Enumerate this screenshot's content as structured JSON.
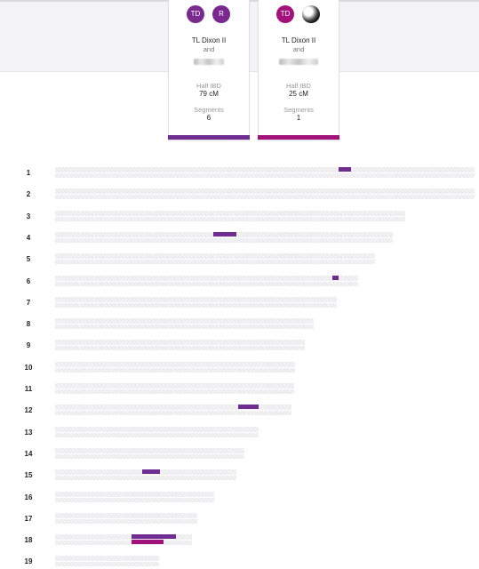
{
  "colors": {
    "purple": "#6f2c91",
    "magenta": "#a3127a",
    "chromosome": "#ececee"
  },
  "cards": [
    {
      "avatar1": "TD",
      "avatar2": "R",
      "avatar1_color": "#7a2a8f",
      "avatar2_color": "#7a2a8f",
      "name1": "TL Dixon II",
      "and": "and",
      "ibd_label": "Half IBD",
      "ibd_value": "79 cM",
      "segments_label": "Segments",
      "segments_value": "6",
      "bar_color": "#6f2c91"
    },
    {
      "avatar1": "TD",
      "avatar1_color": "#a3127a",
      "avatar2_icon": "photo-avatar-icon",
      "name1": "TL Dixon II",
      "and": "and",
      "ibd_label": "Half IBD",
      "ibd_value": "25 cM",
      "segments_label": "Segments",
      "segments_value": "1",
      "bar_color": "#a3127a"
    }
  ],
  "chromosomes": [
    {
      "label": "1",
      "length": 472,
      "segments": [
        {
          "start": 319,
          "end": 333,
          "match": 0
        }
      ]
    },
    {
      "label": "2",
      "length": 472,
      "segments": []
    },
    {
      "label": "3",
      "length": 394,
      "segments": []
    },
    {
      "label": "4",
      "length": 380,
      "segments": [
        {
          "start": 178,
          "end": 204,
          "match": 0
        }
      ]
    },
    {
      "label": "5",
      "length": 360,
      "segments": []
    },
    {
      "label": "6",
      "length": 341,
      "segments": [
        {
          "start": 312,
          "end": 319,
          "match": 0
        }
      ]
    },
    {
      "label": "7",
      "length": 317,
      "segments": []
    },
    {
      "label": "8",
      "length": 291,
      "segments": []
    },
    {
      "label": "9",
      "length": 281,
      "segments": []
    },
    {
      "label": "10",
      "length": 270,
      "segments": []
    },
    {
      "label": "11",
      "length": 269,
      "segments": []
    },
    {
      "label": "12",
      "length": 266,
      "segments": [
        {
          "start": 206,
          "end": 229,
          "match": 0
        }
      ]
    },
    {
      "label": "13",
      "length": 229,
      "segments": []
    },
    {
      "label": "14",
      "length": 213,
      "segments": []
    },
    {
      "label": "15",
      "length": 204,
      "segments": [
        {
          "start": 98,
          "end": 118,
          "match": 0
        }
      ]
    },
    {
      "label": "16",
      "length": 179,
      "segments": []
    },
    {
      "label": "17",
      "length": 160,
      "segments": []
    },
    {
      "label": "18",
      "length": 154,
      "segments": [
        {
          "start": 86,
          "end": 136,
          "match": 0
        },
        {
          "start": 86,
          "end": 122,
          "match": 1
        }
      ]
    },
    {
      "label": "19",
      "length": 117,
      "segments": []
    }
  ]
}
